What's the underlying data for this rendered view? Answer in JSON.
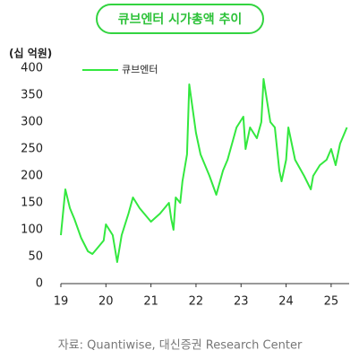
{
  "chart_data": {
    "type": "line",
    "title": "큐브엔터 시가총액 추이",
    "y_label": "(십 억원)",
    "source": "자료: Quantiwise, 대신증권 Research Center",
    "x": [
      19.0,
      19.1,
      19.2,
      19.3,
      19.45,
      19.6,
      19.7,
      19.8,
      19.95,
      20.0,
      20.15,
      20.25,
      20.35,
      20.5,
      20.6,
      20.75,
      20.95,
      21.0,
      21.2,
      21.4,
      21.45,
      21.5,
      21.55,
      21.65,
      21.7,
      21.8,
      21.85,
      22.0,
      22.1,
      22.3,
      22.45,
      22.6,
      22.7,
      22.9,
      23.05,
      23.1,
      23.2,
      23.35,
      23.45,
      23.5,
      23.65,
      23.75,
      23.85,
      23.9,
      24.0,
      24.05,
      24.2,
      24.4,
      24.55,
      24.6,
      24.75,
      24.9,
      25.0,
      25.1,
      25.2,
      25.35
    ],
    "series": [
      {
        "name": "큐브엔터",
        "color": "#33e83f",
        "values": [
          90,
          175,
          140,
          120,
          85,
          60,
          55,
          65,
          80,
          110,
          90,
          40,
          90,
          130,
          160,
          140,
          120,
          115,
          130,
          150,
          120,
          100,
          160,
          150,
          190,
          240,
          370,
          280,
          240,
          200,
          165,
          210,
          230,
          290,
          310,
          250,
          290,
          270,
          300,
          380,
          300,
          290,
          210,
          190,
          230,
          290,
          230,
          200,
          175,
          200,
          220,
          230,
          250,
          220,
          260,
          290
        ]
      }
    ],
    "xlim": [
      19,
      25.4
    ],
    "xticks": [
      19,
      20,
      21,
      22,
      23,
      24,
      25
    ],
    "ylim": [
      0,
      400
    ],
    "yticks": [
      0,
      50,
      100,
      150,
      200,
      250,
      300,
      350,
      400
    ],
    "legend": "top-left"
  }
}
